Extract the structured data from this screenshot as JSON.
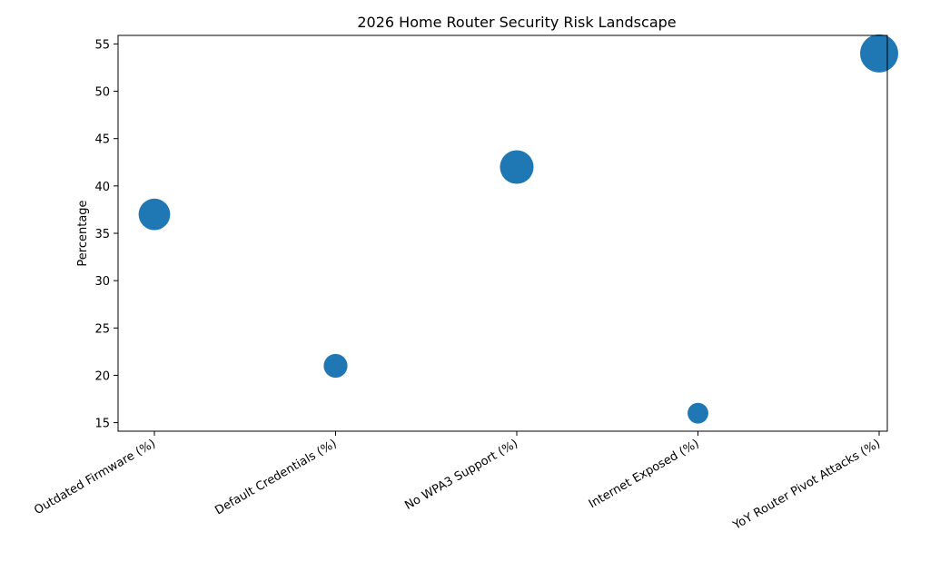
{
  "chart_data": {
    "type": "scatter",
    "title": "2026 Home Router Security Risk Landscape",
    "xlabel": "",
    "ylabel": "Percentage",
    "categories": [
      "Outdated Firmware (%)",
      "Default Credentials (%)",
      "No WPA3 Support (%)",
      "Internet Exposed (%)",
      "YoY Router Pivot Attacks (%)"
    ],
    "values": [
      37,
      21,
      42,
      16,
      54
    ],
    "yticks": [
      15,
      20,
      25,
      30,
      35,
      40,
      45,
      50,
      55
    ],
    "ylim": [
      14.1,
      55.9
    ],
    "grid": false,
    "marker_color": "#1f77b4",
    "marker_size_note": "marker area scales with value"
  }
}
